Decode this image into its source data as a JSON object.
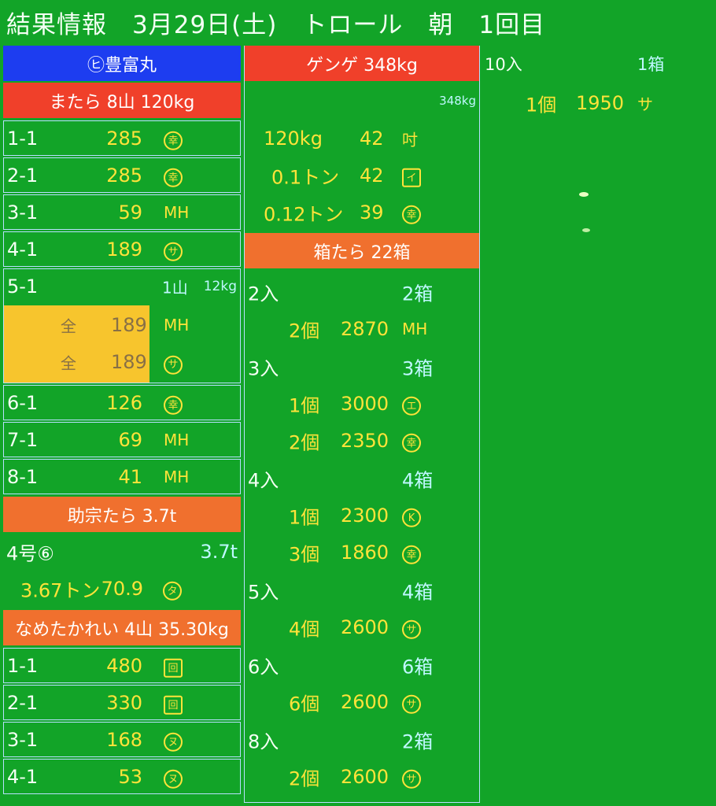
{
  "title": "結果情報　3月29日(土)　トロール　朝　1回目",
  "col1": {
    "ship": "㋪豊富丸",
    "section1": {
      "header": "またら 8山 120kg",
      "rows": [
        {
          "id": "1-1",
          "price": "285",
          "buyer": "幸"
        },
        {
          "id": "2-1",
          "price": "285",
          "buyer": "幸"
        },
        {
          "id": "3-1",
          "price": "59",
          "buyer": "MH"
        },
        {
          "id": "4-1",
          "price": "189",
          "buyer": "サ"
        }
      ],
      "special": {
        "id": "5-1",
        "qty": "1山",
        "weight": "12kg",
        "sub": [
          {
            "label": "全",
            "price": "189",
            "buyer": "MH"
          },
          {
            "label": "全",
            "price": "189",
            "buyer": "サ"
          }
        ]
      },
      "rows2": [
        {
          "id": "6-1",
          "price": "126",
          "buyer": "幸"
        },
        {
          "id": "7-1",
          "price": "69",
          "buyer": "MH"
        },
        {
          "id": "8-1",
          "price": "41",
          "buyer": "MH"
        }
      ]
    },
    "section2": {
      "header": "助宗たら 3.7t",
      "row": {
        "id": "4号⑥",
        "amount": "3.7t"
      },
      "sub": {
        "weight": "3.67トン",
        "price": "70.9",
        "buyer": "タ"
      }
    },
    "section3": {
      "header": "なめたかれい 4山 35.30kg",
      "rows": [
        {
          "id": "1-1",
          "price": "480",
          "buyer": "回"
        },
        {
          "id": "2-1",
          "price": "330",
          "buyer": "回"
        },
        {
          "id": "3-1",
          "price": "168",
          "buyer": "ヌ"
        },
        {
          "id": "4-1",
          "price": "53",
          "buyer": "ヌ"
        }
      ]
    }
  },
  "col2": {
    "header1": "ゲンゲ 348kg",
    "total": "348kg",
    "rows1": [
      {
        "weight": "120kg",
        "price": "42",
        "buyer": "吋"
      },
      {
        "weight": "0.1トン",
        "price": "42",
        "buyer": "イ"
      },
      {
        "weight": "0.12トン",
        "price": "39",
        "buyer": "幸"
      }
    ],
    "header2": "箱たら 22箱",
    "groups": [
      {
        "entry": "2入",
        "boxes": "2箱",
        "items": [
          {
            "count": "2個",
            "price": "2870",
            "buyer": "MH"
          }
        ]
      },
      {
        "entry": "3入",
        "boxes": "3箱",
        "items": [
          {
            "count": "1個",
            "price": "3000",
            "buyer": "エ"
          },
          {
            "count": "2個",
            "price": "2350",
            "buyer": "幸"
          }
        ]
      },
      {
        "entry": "4入",
        "boxes": "4箱",
        "items": [
          {
            "count": "1個",
            "price": "2300",
            "buyer": "K"
          },
          {
            "count": "3個",
            "price": "1860",
            "buyer": "幸"
          }
        ]
      },
      {
        "entry": "5入",
        "boxes": "4箱",
        "items": [
          {
            "count": "4個",
            "price": "2600",
            "buyer": "サ"
          }
        ]
      },
      {
        "entry": "6入",
        "boxes": "6箱",
        "items": [
          {
            "count": "6個",
            "price": "2600",
            "buyer": "サ"
          }
        ]
      },
      {
        "entry": "8入",
        "boxes": "2箱",
        "items": [
          {
            "count": "2個",
            "price": "2600",
            "buyer": "サ"
          }
        ]
      }
    ]
  },
  "col3": {
    "entry": "10入",
    "boxes": "1箱",
    "item": {
      "count": "1個",
      "price": "1950",
      "buyer": "サ"
    }
  }
}
